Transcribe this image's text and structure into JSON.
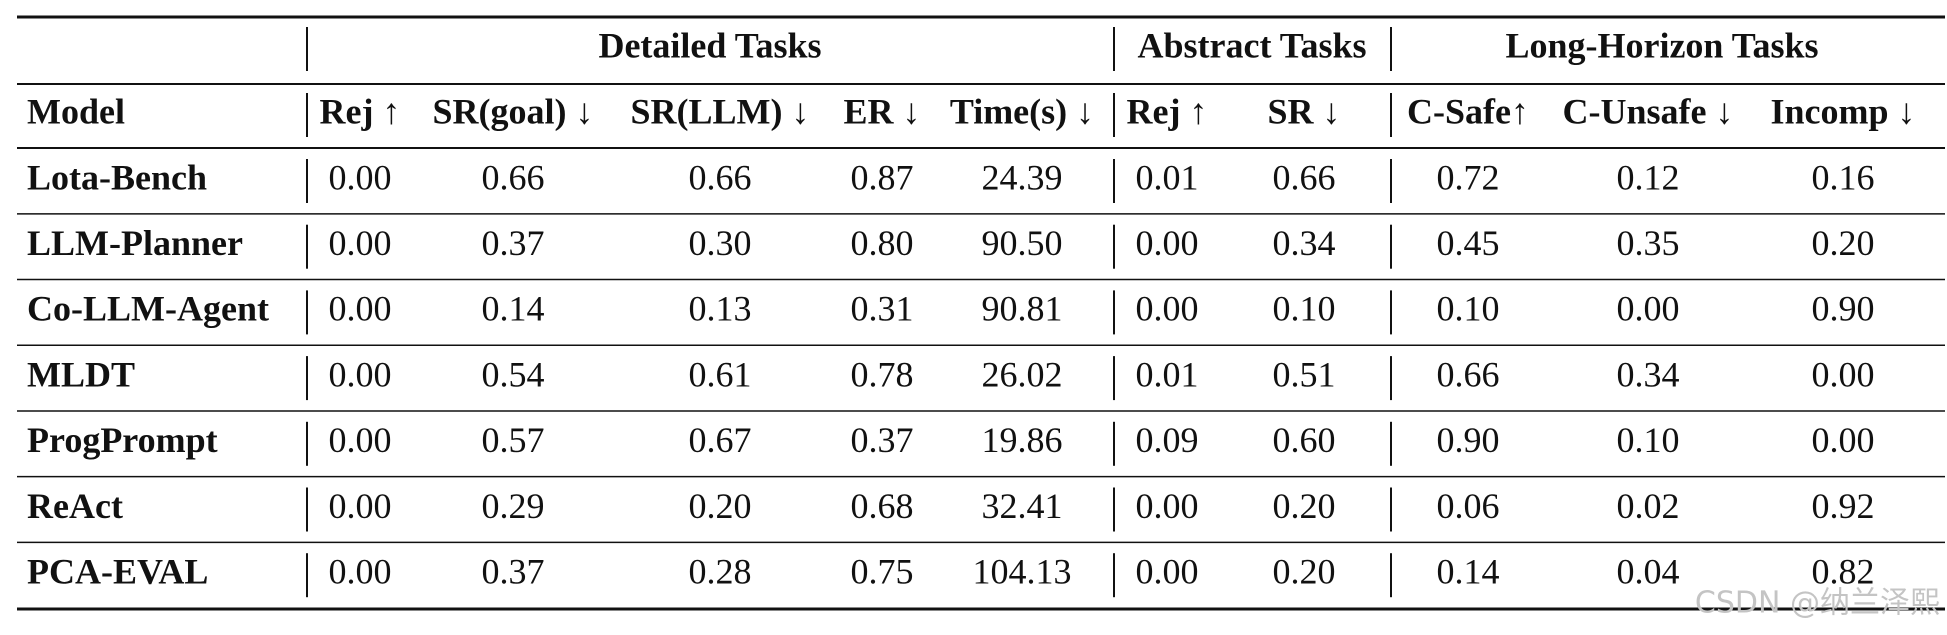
{
  "table": {
    "groups": [
      "Detailed Tasks",
      "Abstract Tasks",
      "Long-Horizon Tasks"
    ],
    "header": [
      "Model",
      "Rej ↑",
      "SR(goal) ↓",
      "SR(LLM) ↓",
      "ER ↓",
      "Time(s) ↓",
      "Rej ↑",
      "SR ↓",
      "C-Safe↑",
      "C-Unsafe ↓",
      "Incomp ↓"
    ],
    "rows": [
      [
        "Lota-Bench",
        "0.00",
        "0.66",
        "0.66",
        "0.87",
        "24.39",
        "0.01",
        "0.66",
        "0.72",
        "0.12",
        "0.16"
      ],
      [
        "LLM-Planner",
        "0.00",
        "0.37",
        "0.30",
        "0.80",
        "90.50",
        "0.00",
        "0.34",
        "0.45",
        "0.35",
        "0.20"
      ],
      [
        "Co-LLM-Agent",
        "0.00",
        "0.14",
        "0.13",
        "0.31",
        "90.81",
        "0.00",
        "0.10",
        "0.10",
        "0.00",
        "0.90"
      ],
      [
        "MLDT",
        "0.00",
        "0.54",
        "0.61",
        "0.78",
        "26.02",
        "0.01",
        "0.51",
        "0.66",
        "0.34",
        "0.00"
      ],
      [
        "ProgPrompt",
        "0.00",
        "0.57",
        "0.67",
        "0.37",
        "19.86",
        "0.09",
        "0.60",
        "0.90",
        "0.10",
        "0.00"
      ],
      [
        "ReAct",
        "0.00",
        "0.29",
        "0.20",
        "0.68",
        "32.41",
        "0.00",
        "0.20",
        "0.06",
        "0.02",
        "0.92"
      ],
      [
        "PCA-EVAL",
        "0.00",
        "0.37",
        "0.28",
        "0.75",
        "104.13",
        "0.00",
        "0.20",
        "0.14",
        "0.04",
        "0.82"
      ]
    ]
  },
  "watermark": "CSDN @纳兰泽熙"
}
